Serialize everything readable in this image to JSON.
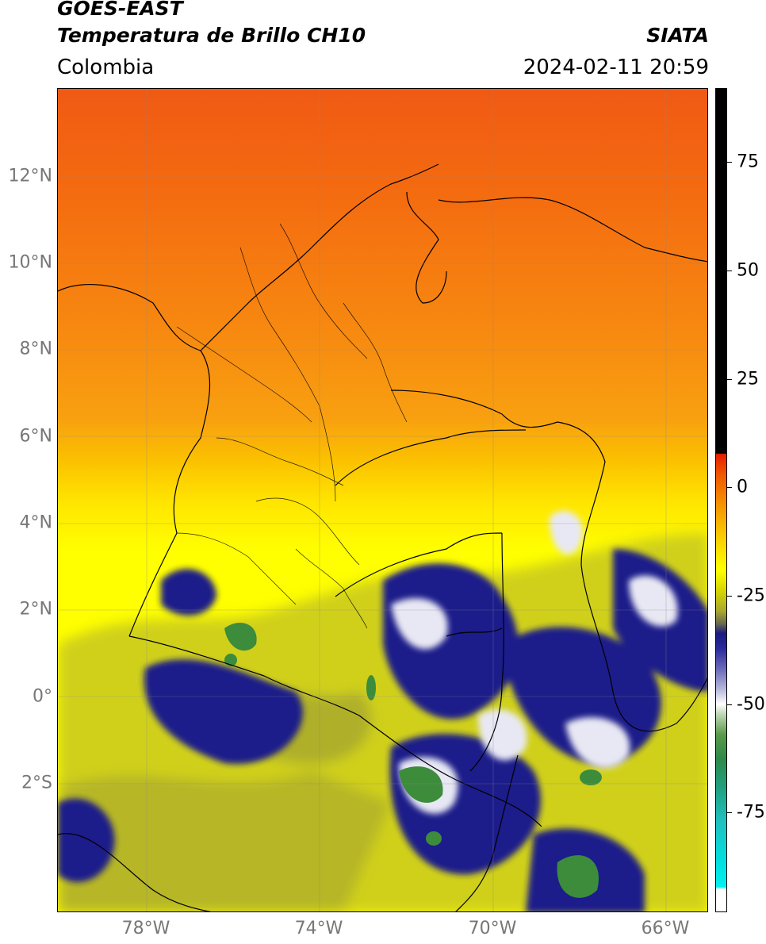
{
  "header": {
    "title_line1": "GOES-EAST",
    "title_line2": "Temperatura de Brillo CH10",
    "region": "Colombia",
    "organization": "SIATA",
    "timestamp": "2024-02-11 20:59"
  },
  "map": {
    "lat_ticks": [
      "12°N",
      "10°N",
      "8°N",
      "6°N",
      "4°N",
      "2°N",
      "0°",
      "2°S"
    ],
    "lon_ticks": [
      "78°W",
      "74°W",
      "70°W",
      "66°W"
    ],
    "colors": {
      "warm_orange": "#f57a10",
      "orange_red": "#f05a14",
      "yellow": "#ffff00",
      "olive": "#b8b820",
      "deep_blue": "#1c1c8a",
      "cloud_white": "#e8e8f4",
      "cold_green": "#3c8c3c"
    }
  },
  "colorbar": {
    "labels": [
      "75",
      "50",
      "25",
      "0",
      "-25",
      "-50",
      "-75"
    ]
  }
}
